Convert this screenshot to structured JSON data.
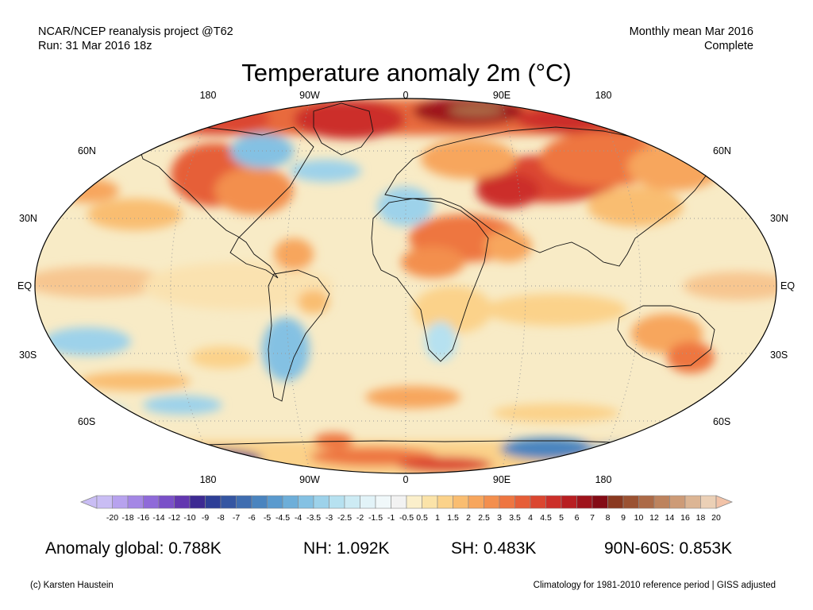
{
  "header": {
    "left_line1": "NCAR/NCEP reanalysis project @T62",
    "left_line2": "Run: 31 Mar 2016 18z",
    "right_line1": "Monthly mean Mar 2016",
    "right_line2": "Complete"
  },
  "title": "Temperature anomaly 2m (°C)",
  "graticule": {
    "lon_labels": [
      "180",
      "90W",
      "0",
      "90E",
      "180"
    ],
    "lat_labels_left": [
      "60N",
      "30N",
      "EQ",
      "30S",
      "60S"
    ],
    "lat_labels_right": [
      "60N",
      "30N",
      "EQ",
      "30S",
      "60S"
    ]
  },
  "legend": {
    "ticks": [
      "-20",
      "-18",
      "-16",
      "-14",
      "-12",
      "-10",
      "-9",
      "-8",
      "-7",
      "-6",
      "-5",
      "-4.5",
      "-4",
      "-3.5",
      "-3",
      "-2.5",
      "-2",
      "-1.5",
      "-1",
      "-0.5",
      "0.5",
      "1",
      "1.5",
      "2",
      "2.5",
      "3",
      "3.5",
      "4",
      "4.5",
      "5",
      "6",
      "7",
      "8",
      "9",
      "10",
      "12",
      "14",
      "16",
      "18",
      "20"
    ],
    "colors": [
      "#c9bdf4",
      "#b7a2ee",
      "#a487e5",
      "#8f6ad9",
      "#7a50c8",
      "#6337b0",
      "#3d2a93",
      "#2e3f97",
      "#3556a2",
      "#3f6db0",
      "#4a84bf",
      "#5a9ace",
      "#6daed9",
      "#84c1e3",
      "#9dd2ea",
      "#b6e1f0",
      "#cdebf4",
      "#e2f3f8",
      "#f0f8fa",
      "#f2f2f2",
      "#fbefcb",
      "#fbe3a8",
      "#fbd28a",
      "#f9bd71",
      "#f7a65d",
      "#f38f4e",
      "#ee7641",
      "#e65e37",
      "#db4630",
      "#cc2f29",
      "#b81f22",
      "#9f141c",
      "#840b15",
      "#8a3920",
      "#9b5232",
      "#ac6a47",
      "#bd835e",
      "#cd9b77",
      "#dcb594",
      "#ebd0b6"
    ],
    "left_arrow_color": "#c9bdf4",
    "right_arrow_color": "#f2c3a8"
  },
  "stats": {
    "global": "Anomaly global: 0.788K",
    "nh": "NH: 1.092K",
    "sh": "SH: 0.483K",
    "arctic": "90N-60S: 0.853K"
  },
  "footer": {
    "credit": "(c) Karsten Haustein",
    "reference": "Climatology for 1981-2010 reference period | GISS adjusted"
  },
  "colors": {
    "background_field": "#f6e6c0",
    "ocean_neutral": "#f2f2f2",
    "warm_strong": "#cc2f29",
    "cool_strong": "#5a9ace"
  }
}
